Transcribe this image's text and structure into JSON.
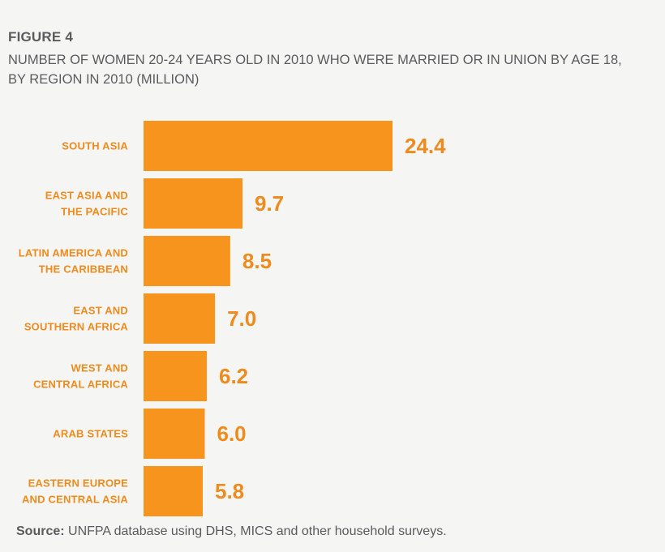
{
  "figure_label": "FIGURE 4",
  "title_lines": [
    "NUMBER OF WOMEN 20-24 YEARS OLD IN 2010 WHO WERE MARRIED OR IN UNION BY AGE 18,",
    "BY REGION IN 2010 (MILLION)"
  ],
  "chart_data": {
    "type": "bar",
    "orientation": "horizontal",
    "title": "NUMBER OF WOMEN 20-24 YEARS OLD IN 2010 WHO WERE MARRIED OR IN UNION BY AGE 18, BY REGION IN 2010 (MILLION)",
    "xlabel": "",
    "ylabel": "",
    "xlim": [
      0,
      24.4
    ],
    "grid": false,
    "bar_color": "#f7941d",
    "label_color": "#ef8b1d",
    "categories": [
      [
        "SOUTH ASIA"
      ],
      [
        "EAST ASIA AND",
        "THE PACIFIC"
      ],
      [
        "LATIN AMERICA AND",
        "THE CARIBBEAN"
      ],
      [
        "EAST AND",
        "SOUTHERN AFRICA"
      ],
      [
        "WEST AND",
        "CENTRAL AFRICA"
      ],
      [
        "ARAB STATES"
      ],
      [
        "EASTERN EUROPE",
        "AND CENTRAL ASIA"
      ]
    ],
    "values": [
      24.4,
      9.7,
      8.5,
      7.0,
      6.2,
      6.0,
      5.8
    ],
    "value_labels": [
      "24.4",
      "9.7",
      "8.5",
      "7.0",
      "6.2",
      "6.0",
      "5.8"
    ]
  },
  "source": {
    "label": "Source:",
    "text": " UNFPA database using DHS, MICS and other household surveys."
  }
}
